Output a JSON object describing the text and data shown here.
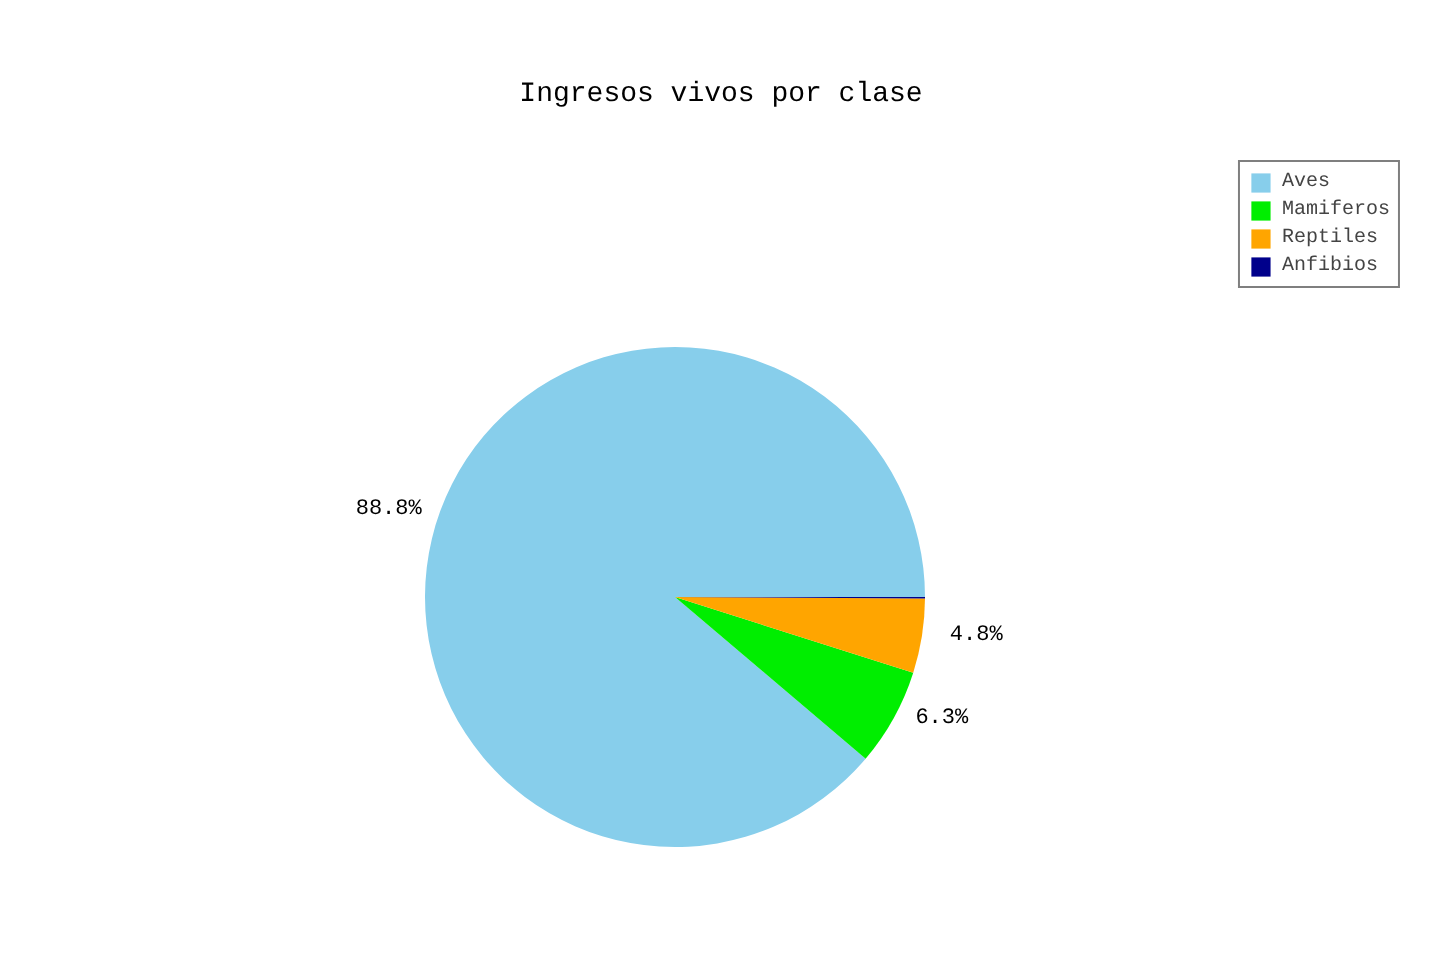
{
  "chart_data": {
    "type": "pie",
    "title": "Ingresos vivos por clase",
    "categories": [
      "Aves",
      "Mamiferos",
      "Reptiles",
      "Anfibios"
    ],
    "values": [
      88.8,
      6.3,
      4.8,
      0.1
    ],
    "value_labels": [
      "88.8%",
      "6.3%",
      "4.8%",
      null
    ],
    "colors": [
      "#87ceeb",
      "#00ee00",
      "#ffa500",
      "#00008b"
    ],
    "legend": "top right"
  }
}
